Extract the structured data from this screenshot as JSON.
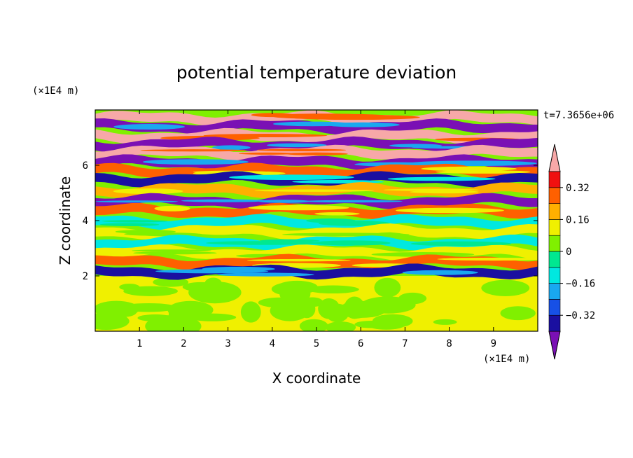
{
  "chart_data": {
    "type": "heatmap",
    "title": "potential temperature deviation",
    "xlabel": "X coordinate",
    "ylabel": "Z coordinate",
    "x_unit": "(×1E4 m)",
    "y_unit": "(×1E4 m)",
    "time_label": "t=7.3656e+06",
    "xlim": [
      0,
      10
    ],
    "ylim": [
      0,
      8
    ],
    "x_ticks": [
      1,
      2,
      3,
      4,
      5,
      6,
      7,
      8,
      9
    ],
    "y_ticks": [
      2,
      4,
      6
    ],
    "colorbar": {
      "levels": [
        -0.4,
        -0.32,
        -0.24,
        -0.16,
        -0.08,
        0,
        0.08,
        0.16,
        0.24,
        0.32,
        0.4
      ],
      "labels": [
        "0.32",
        "0.16",
        "0",
        "−0.16",
        "−0.32"
      ],
      "label_values": [
        0.32,
        0.16,
        0,
        -0.16,
        -0.32
      ],
      "colors": [
        "#7a10b4",
        "#1a0fa0",
        "#1750e6",
        "#19a8f0",
        "#00e8e0",
        "#00e890",
        "#80f000",
        "#f0f000",
        "#ffb000",
        "#ff6000",
        "#f01010",
        "#f7a8a8"
      ],
      "extend": "both"
    },
    "field_description_rows": [
      {
        "z": 7.7,
        "value": 0.48
      },
      {
        "z": 7.4,
        "value": -0.48
      },
      {
        "z": 7.05,
        "value": 0.48
      },
      {
        "z": 6.75,
        "value": -0.48
      },
      {
        "z": 6.45,
        "value": 0.48
      },
      {
        "z": 6.1,
        "value": -0.48
      },
      {
        "z": 5.8,
        "value": 0.3
      },
      {
        "z": 5.5,
        "value": -0.36
      },
      {
        "z": 5.1,
        "value": 0.2
      },
      {
        "z": 4.7,
        "value": -0.42
      },
      {
        "z": 4.35,
        "value": 0.28
      },
      {
        "z": 3.95,
        "value": -0.12
      },
      {
        "z": 3.6,
        "value": 0.1
      },
      {
        "z": 3.2,
        "value": -0.1
      },
      {
        "z": 2.85,
        "value": 0.14
      },
      {
        "z": 2.5,
        "value": 0.3
      },
      {
        "z": 2.15,
        "value": -0.4
      },
      {
        "z": 1.0,
        "value": 0.04
      }
    ]
  }
}
